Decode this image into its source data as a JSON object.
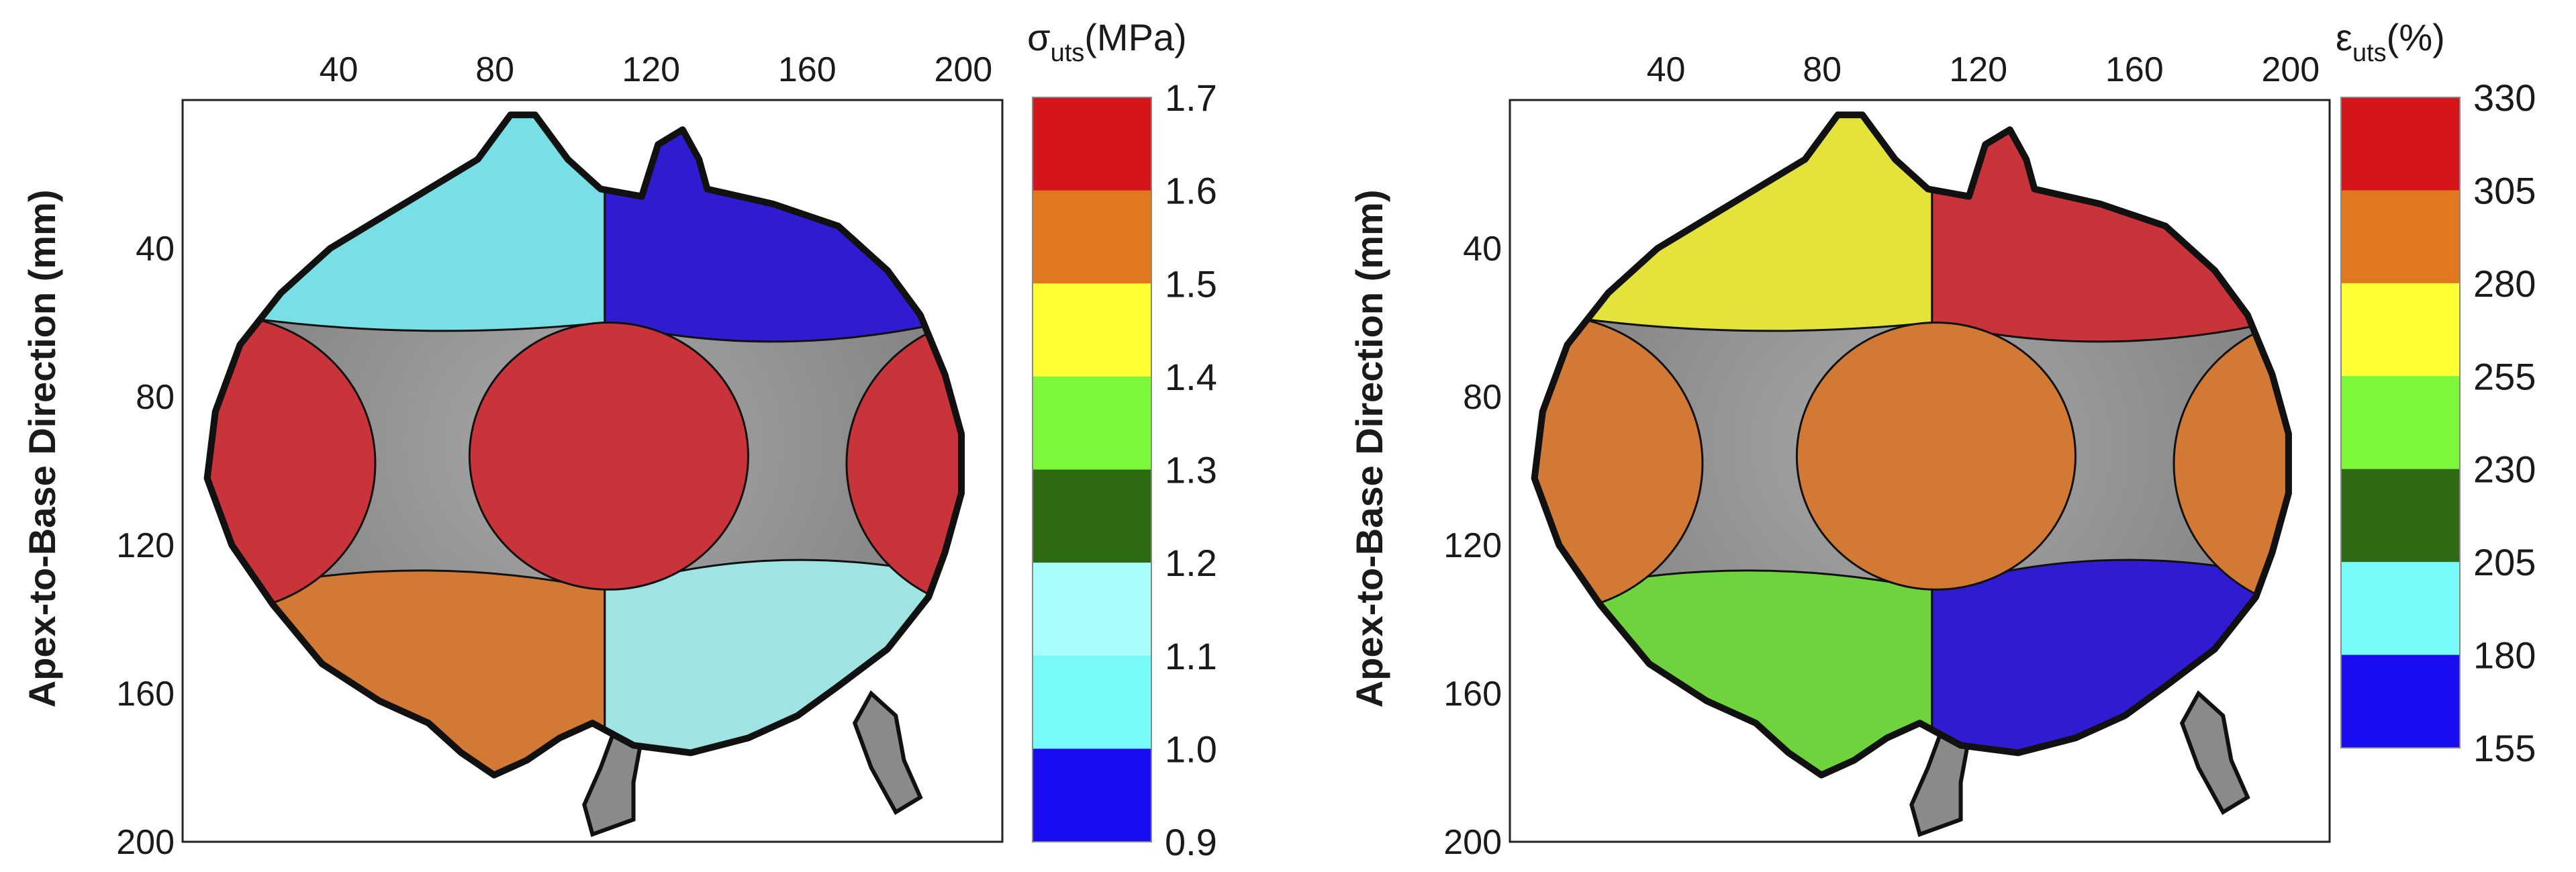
{
  "chart_data": [
    {
      "type": "heatmap",
      "ylabel": "Apex-to-Base Direction (mm)",
      "x_ticks": [
        "40",
        "80",
        "120",
        "160",
        "200"
      ],
      "y_ticks": [
        "40",
        "80",
        "120",
        "160",
        "200"
      ],
      "xlim": [
        0,
        210
      ],
      "ylim": [
        0,
        200
      ],
      "colorbar": {
        "title_symbol": "σ",
        "title_sub": "uts",
        "title_suffix": "(MPa)",
        "ticks": [
          "1.7",
          "1.6",
          "1.5",
          "1.4",
          "1.3",
          "1.2",
          "1.1",
          "1.0",
          "0.9"
        ],
        "colors": [
          "#d4161a",
          "#e07820",
          "#ffff33",
          "#7cf73a",
          "#2e6a14",
          "#a8fdfb",
          "#79fafa",
          "#1a0cf0"
        ]
      },
      "regions": [
        {
          "name": "upper-left",
          "color": "#79dfe6"
        },
        {
          "name": "upper-right",
          "color": "#2f1cd0"
        },
        {
          "name": "middle-left",
          "color": "#c9343a"
        },
        {
          "name": "middle-center",
          "color": "#c9343a"
        },
        {
          "name": "middle-right",
          "color": "#c9343a"
        },
        {
          "name": "lower-left",
          "color": "#d27a35"
        },
        {
          "name": "lower-right",
          "color": "#9fe3e3"
        }
      ]
    },
    {
      "type": "heatmap",
      "ylabel": "Apex-to-Base Direction (mm)",
      "x_ticks": [
        "40",
        "80",
        "120",
        "160",
        "200"
      ],
      "y_ticks": [
        "40",
        "80",
        "120",
        "160",
        "200"
      ],
      "xlim": [
        0,
        210
      ],
      "ylim": [
        0,
        200
      ],
      "colorbar": {
        "title_symbol": "ε",
        "title_sub": "uts",
        "title_suffix": "(%)",
        "ticks": [
          "330",
          "305",
          "280",
          "255",
          "230",
          "205",
          "180",
          "155"
        ],
        "colors": [
          "#d4161a",
          "#e07820",
          "#ffff33",
          "#7cf73a",
          "#2e6a14",
          "#79fafa",
          "#1a0cf0"
        ]
      },
      "regions": [
        {
          "name": "upper-left",
          "color": "#e3e33c"
        },
        {
          "name": "upper-right",
          "color": "#c9343a"
        },
        {
          "name": "middle-left",
          "color": "#d27a35"
        },
        {
          "name": "middle-center",
          "color": "#d27a35"
        },
        {
          "name": "middle-right",
          "color": "#d27a35"
        },
        {
          "name": "lower-left",
          "color": "#6fd33e"
        },
        {
          "name": "lower-right",
          "color": "#2f1cd0"
        }
      ]
    }
  ]
}
